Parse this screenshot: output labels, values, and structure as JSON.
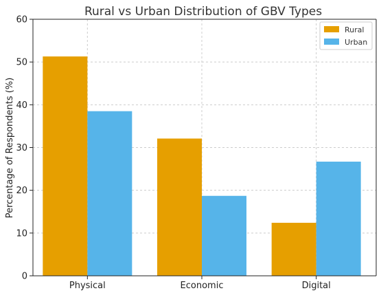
{
  "chart_data": {
    "type": "bar",
    "title": "Rural vs Urban Distribution of GBV Types",
    "xlabel": "",
    "ylabel": "Percentage of Respondents (%)",
    "categories": [
      "Physical",
      "Economic",
      "Digital"
    ],
    "series": [
      {
        "name": "Rural",
        "values": [
          51.3,
          32.1,
          12.4
        ],
        "color": "#E69F00"
      },
      {
        "name": "Urban",
        "values": [
          38.5,
          18.7,
          26.7
        ],
        "color": "#56B4E9"
      }
    ],
    "ylim": [
      0,
      60
    ],
    "yticks": [
      0,
      10,
      20,
      30,
      40,
      50,
      60
    ],
    "grid": true,
    "legend_position": "top-right"
  }
}
